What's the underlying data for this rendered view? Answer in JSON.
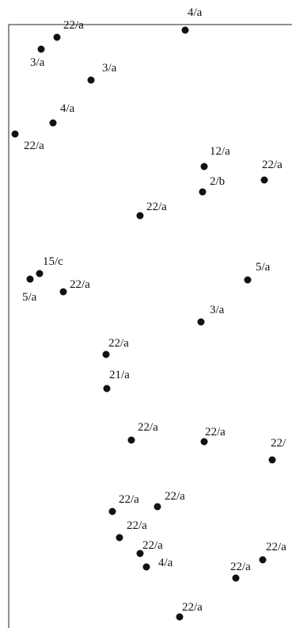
{
  "colors": {
    "marker": "#111111",
    "text": "#111111",
    "border": "#222222",
    "background": "#ffffff"
  },
  "points": [
    {
      "label": "22/a"
    },
    {
      "label": "4/a"
    },
    {
      "label": "3/a"
    },
    {
      "label": "3/a"
    },
    {
      "label": "4/a"
    },
    {
      "label": "22/a"
    },
    {
      "label": "12/a"
    },
    {
      "label": "2/b"
    },
    {
      "label": "22/a"
    },
    {
      "label": "22/a"
    },
    {
      "label": "15/c"
    },
    {
      "label": "5/a"
    },
    {
      "label": "22/a"
    },
    {
      "label": "5/a"
    },
    {
      "label": "3/a"
    },
    {
      "label": "22/a"
    },
    {
      "label": "21/a"
    },
    {
      "label": "22/a"
    },
    {
      "label": "22/a"
    },
    {
      "label": "22/"
    },
    {
      "label": "22/a"
    },
    {
      "label": "22/a"
    },
    {
      "label": "22/a"
    },
    {
      "label": "22/a"
    },
    {
      "label": "4/a"
    },
    {
      "label": "22/a"
    },
    {
      "label": "22/a"
    },
    {
      "label": "22/a"
    }
  ]
}
